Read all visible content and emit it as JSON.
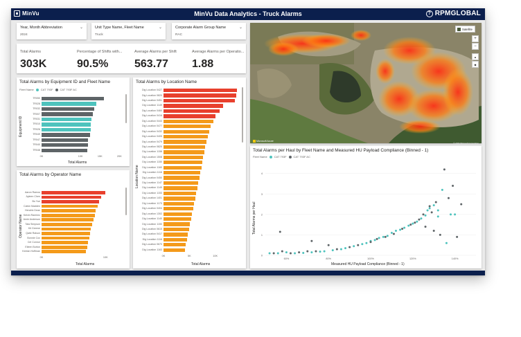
{
  "app": {
    "logo_text": "MinVu",
    "title": "MinVu Data Analytics - Truck Alarms",
    "brand": "RPMGLOBAL",
    "help_glyph": "?"
  },
  "slicers": [
    {
      "label": "Year, Month Abbreviation",
      "value": "2024"
    },
    {
      "label": "Unit Type Name, Fleet Name",
      "value": "Truck"
    },
    {
      "label": "Corporate Alarm Group Name",
      "value": "RAC"
    }
  ],
  "kpis": [
    {
      "label": "Total Alarms",
      "value": "303K"
    },
    {
      "label": "Percentage of Shifts with...",
      "value": "90.5%"
    },
    {
      "label": "Average Alarms per Shift",
      "value": "563.77"
    },
    {
      "label": "Average Alarms per Operatio...",
      "value": "1.88"
    }
  ],
  "colors": {
    "teal": "#4ec3bd",
    "gray": "#5e6467",
    "navy": "#0b1f4d",
    "red": "#e8402d",
    "orange": "#f49a1a"
  },
  "equipment_chart": {
    "title": "Total Alarms by Equipment ID and Fleet Name",
    "legend_title": "Fleet Name",
    "legend": [
      {
        "name": "CAT 793F",
        "color": "#4ec3bd"
      },
      {
        "name": "CAT 793F AC",
        "color": "#5e6467"
      }
    ],
    "yaxis_title": "Equipment ID",
    "xaxis_title": "Total Alarms",
    "ticks": [
      "0K",
      "10K",
      "15K",
      "20K"
    ],
    "tick_values": [
      0,
      10,
      15,
      20
    ],
    "xmax": 21,
    "categories": [
      "TR050",
      "TR028",
      "TR032",
      "TR007",
      "TR031",
      "TR010",
      "TR026",
      "TR049",
      "TR047",
      "TR040",
      "TR048"
    ],
    "values": [
      16,
      14,
      13.5,
      13.2,
      12.8,
      12.6,
      12.7,
      12.4,
      12.0,
      12.0,
      11.8
    ],
    "fleet": [
      1,
      0,
      1,
      1,
      0,
      0,
      0,
      1,
      1,
      1,
      1
    ]
  },
  "location_chart": {
    "title": "Total Alarms by Location Name",
    "yaxis_title": "Location Name",
    "xaxis_title": "Total Alarms",
    "ticks": [
      "0K",
      "5K",
      "10K"
    ],
    "tick_values": [
      0,
      5,
      10
    ],
    "xmax": 15,
    "categories": [
      "Dig Location 0427",
      "Dig Location 0820",
      "Dig Location 0451",
      "Dig Location 1149",
      "Dig Location 0460",
      "Dig Location 0416",
      "Dig Location 0443",
      "Dig Location 0477",
      "Dig Location 0432",
      "Dig Location 0405",
      "Dig Location 0479",
      "Dig Location 0820",
      "Dig Location 1158",
      "Dig Location 1508",
      "Dig Location 1150",
      "Dig Location 1160",
      "Dig Location 1116",
      "Dig Location 0450",
      "Dig Location 1147",
      "Dig Location 1149",
      "Dig Location 1153",
      "Dig Location 1401",
      "Dig Location 1173",
      "Dig Location 0404",
      "Dig Location 1302",
      "Dig Location 1140",
      "Dig Location 1150",
      "Dig Location 0615",
      "Dig Location 0417",
      "Dig Location 1116",
      "Dig Location 0670",
      "Dig Location 1163"
    ],
    "values": [
      14.2,
      14.0,
      13.8,
      11.5,
      10.8,
      10.0,
      9.6,
      9.1,
      8.9,
      8.6,
      8.3,
      8.1,
      7.9,
      7.7,
      7.5,
      7.3,
      7.1,
      6.9,
      6.7,
      6.5,
      6.3,
      6.1,
      5.9,
      5.7,
      5.5,
      5.3,
      5.1,
      4.9,
      4.7,
      4.5,
      4.3,
      4.1
    ],
    "red_count": 6
  },
  "operator_chart": {
    "title": "Total Alarms by Operator Name",
    "yaxis_title": "Operator Name",
    "xaxis_title": "Total Alarms",
    "ticks": [
      "0K",
      "10K"
    ],
    "tick_values": [
      0,
      10
    ],
    "xmax": 13,
    "categories": [
      "Aaron Ramos",
      "Ayleen Chen",
      "Bo Yue",
      "Calvin Madden",
      "Hendrix Dean",
      "Kelvin Ramirez",
      "Amie Anderson",
      "Tala Simpson",
      "Kit Greene",
      "Qatie Ralson",
      "Bonnie Cox",
      "Cel Connor",
      "Eileen Burton",
      "Keelan Hoffman"
    ],
    "values": [
      10.0,
      9.3,
      9.0,
      8.8,
      8.5,
      8.3,
      8.1,
      7.9,
      7.7,
      7.6,
      7.5,
      7.3,
      7.1,
      6.9
    ],
    "red_count": 3
  },
  "map": {
    "satellite_label": "Satellite",
    "attribution": "Microsoft Azure",
    "copyright": "© 2024 Microsoft Corporation",
    "zoom_in": "+",
    "zoom_out": "−",
    "compass": "▲",
    "pitch": "◆"
  },
  "scatter": {
    "title": "Total Alarms per Haul by Fleet Name and Measured HU Payload Compliance (Binned - 1)",
    "legend_title": "Fleet Name",
    "legend": [
      {
        "name": "CAT 793F",
        "color": "#4ec3bd"
      },
      {
        "name": "CAT 793F AC",
        "color": "#5e6467"
      }
    ],
    "xaxis_title": "Measured HU Payload Compliance (Binned - 1)",
    "yaxis_title": "Total Alarms per Haul",
    "xticks": [
      "60%",
      "80%",
      "100%",
      "120%",
      "140%"
    ],
    "xtick_values": [
      60,
      80,
      100,
      120,
      140
    ],
    "yticks": [
      "0",
      "1",
      "2",
      "3",
      "4"
    ],
    "ytick_values": [
      0,
      1,
      2,
      3,
      4
    ],
    "xlim": [
      50,
      150
    ],
    "ylim": [
      0,
      4.6
    ],
    "fleet_a": [
      [
        52,
        0.1
      ],
      [
        56,
        0.1
      ],
      [
        60,
        0.15
      ],
      [
        64,
        0.1
      ],
      [
        68,
        0.12
      ],
      [
        72,
        0.15
      ],
      [
        76,
        0.18
      ],
      [
        78,
        0.2
      ],
      [
        82,
        0.25
      ],
      [
        86,
        0.3
      ],
      [
        88,
        0.35
      ],
      [
        92,
        0.45
      ],
      [
        96,
        0.55
      ],
      [
        98,
        0.6
      ],
      [
        100,
        0.7
      ],
      [
        102,
        0.75
      ],
      [
        104,
        0.85
      ],
      [
        106,
        0.9
      ],
      [
        108,
        0.95
      ],
      [
        110,
        1.1
      ],
      [
        112,
        1.2
      ],
      [
        114,
        1.25
      ],
      [
        116,
        1.35
      ],
      [
        118,
        1.45
      ],
      [
        120,
        1.55
      ],
      [
        122,
        1.65
      ],
      [
        124,
        1.8
      ],
      [
        126,
        1.95
      ],
      [
        127,
        2.2
      ],
      [
        128,
        2.3
      ],
      [
        130,
        2.45
      ],
      [
        132,
        2.2
      ],
      [
        134,
        3.2
      ],
      [
        136,
        0.6
      ],
      [
        138,
        2.0
      ],
      [
        140,
        2.0
      ],
      [
        132,
        1.9
      ]
    ],
    "fleet_b": [
      [
        54,
        0.1
      ],
      [
        57,
        1.15
      ],
      [
        58,
        0.2
      ],
      [
        62,
        0.1
      ],
      [
        66,
        0.15
      ],
      [
        70,
        0.2
      ],
      [
        72,
        0.7
      ],
      [
        74,
        0.2
      ],
      [
        80,
        0.5
      ],
      [
        84,
        0.3
      ],
      [
        90,
        0.4
      ],
      [
        94,
        0.5
      ],
      [
        100,
        0.65
      ],
      [
        103,
        0.8
      ],
      [
        107,
        0.9
      ],
      [
        111,
        1.05
      ],
      [
        115,
        1.3
      ],
      [
        119,
        1.5
      ],
      [
        121,
        1.6
      ],
      [
        123,
        1.75
      ],
      [
        125,
        2.0
      ],
      [
        128,
        2.4
      ],
      [
        129,
        2.1
      ],
      [
        131,
        2.6
      ],
      [
        133,
        1.0
      ],
      [
        135,
        4.2
      ],
      [
        137,
        2.8
      ],
      [
        139,
        3.4
      ],
      [
        141,
        0.9
      ],
      [
        143,
        2.5
      ],
      [
        130,
        1.2
      ],
      [
        126,
        1.4
      ]
    ]
  }
}
